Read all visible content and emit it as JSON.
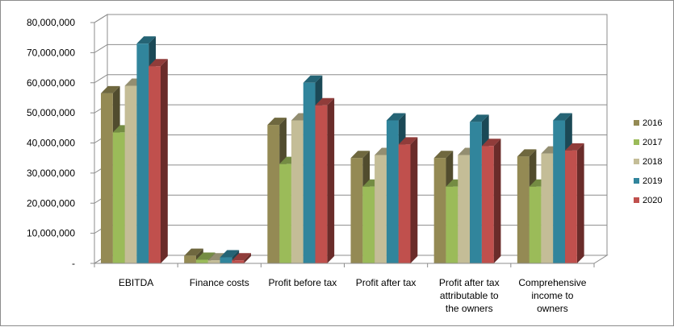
{
  "chart_data": {
    "type": "bar",
    "style": "3d-clustered-column",
    "title": "",
    "xlabel": "",
    "ylabel": "",
    "ylim": [
      0,
      80000000
    ],
    "y_ticks": [
      {
        "value": 0,
        "label": "-"
      },
      {
        "value": 10000000,
        "label": "10,000,000"
      },
      {
        "value": 20000000,
        "label": "20,000,000"
      },
      {
        "value": 30000000,
        "label": "30,000,000"
      },
      {
        "value": 40000000,
        "label": "40,000,000"
      },
      {
        "value": 50000000,
        "label": "50,000,000"
      },
      {
        "value": 60000000,
        "label": "60,000,000"
      },
      {
        "value": 70000000,
        "label": "70,000,000"
      },
      {
        "value": 80000000,
        "label": "80,000,000"
      }
    ],
    "grid": true,
    "legend_position": "right",
    "categories": [
      [
        "EBITDA"
      ],
      [
        "Finance costs"
      ],
      [
        "Profit before tax"
      ],
      [
        "Profit after tax"
      ],
      [
        "Profit after tax",
        "attributable to",
        "the owners"
      ],
      [
        "Comprehensive",
        "income to",
        "owners"
      ]
    ],
    "series": [
      {
        "name": "2016",
        "color": "#948a54",
        "values": [
          56500000,
          2500000,
          46000000,
          35000000,
          35000000,
          35500000
        ]
      },
      {
        "name": "2017",
        "color": "#9bbb59",
        "values": [
          43500000,
          1200000,
          33000000,
          25500000,
          25500000,
          25500000
        ]
      },
      {
        "name": "2018",
        "color": "#c4bd97",
        "values": [
          59000000,
          1000000,
          47500000,
          36000000,
          36000000,
          36500000
        ]
      },
      {
        "name": "2019",
        "color": "#31859c",
        "values": [
          73000000,
          2000000,
          60000000,
          47500000,
          47000000,
          47500000
        ]
      },
      {
        "name": "2020",
        "color": "#c0504d",
        "values": [
          65500000,
          1000000,
          52500000,
          39500000,
          39000000,
          37500000
        ]
      }
    ]
  }
}
